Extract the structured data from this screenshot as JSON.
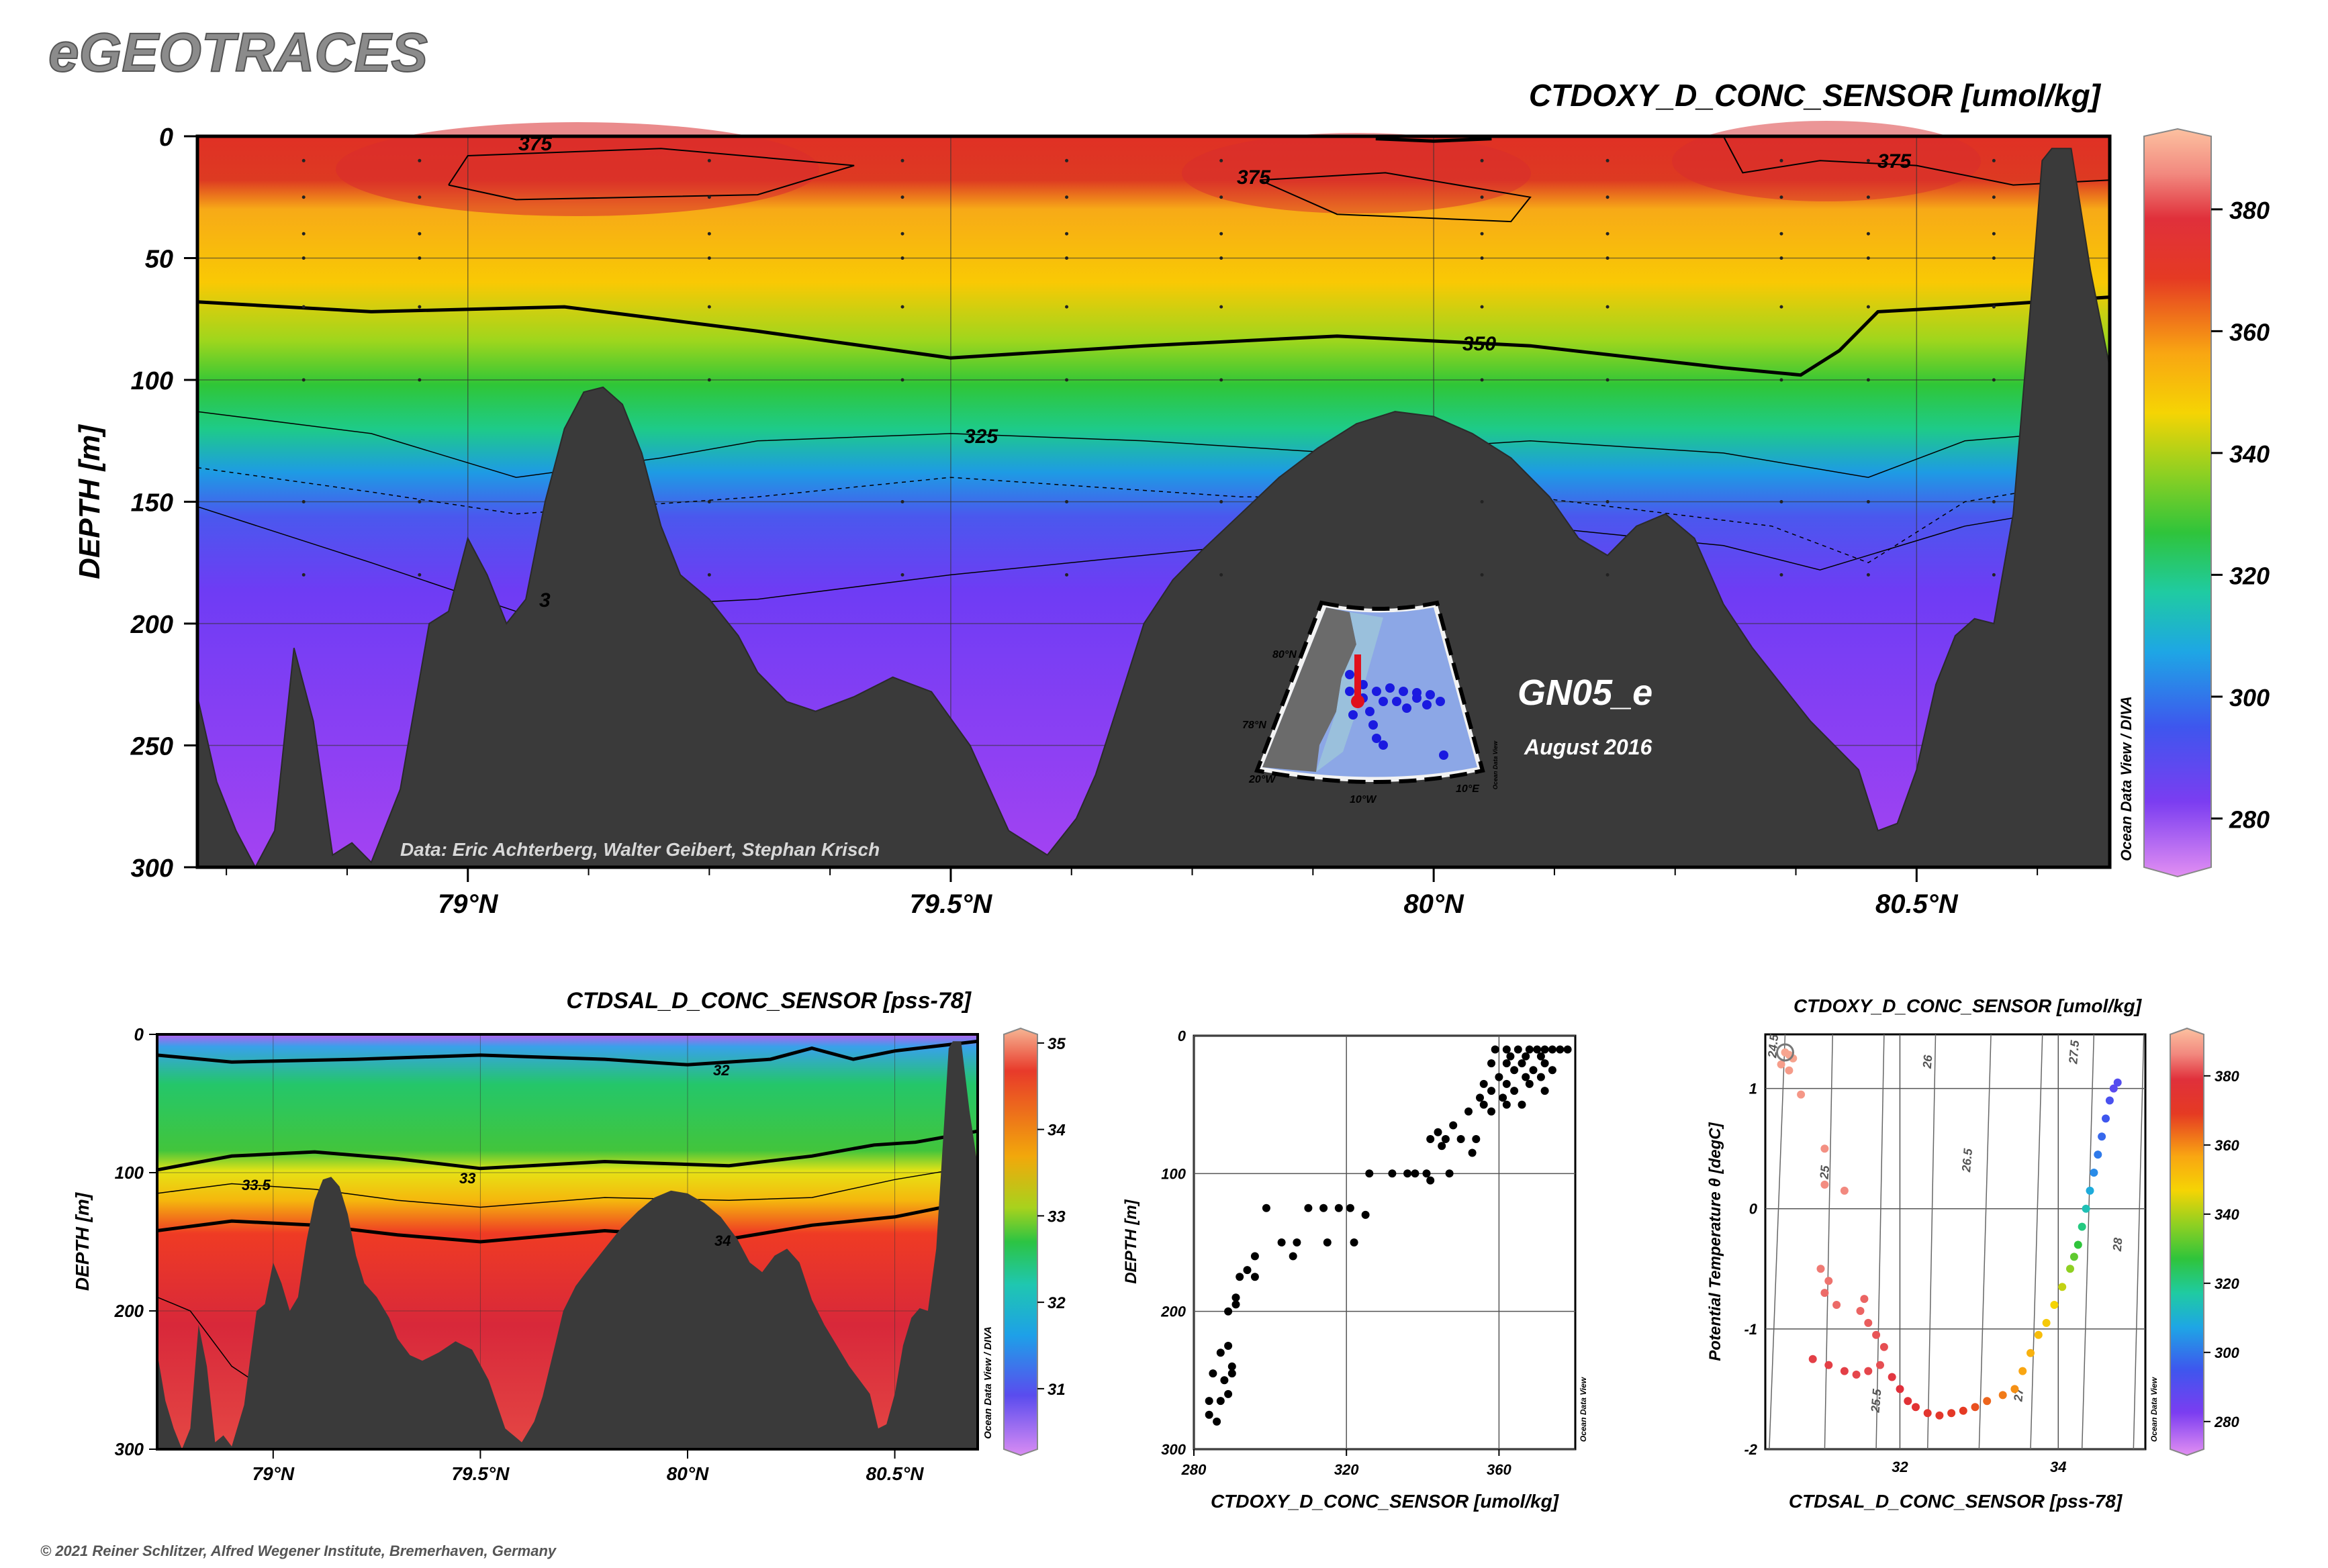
{
  "brand": "eGEOTRACES",
  "credit": "© 2021 Reiner Schlitzer, Alfred Wegener Institute, Bremerhaven, Germany",
  "main_section": {
    "title": "CTDOXY_D_CONC_SENSOR [umol/kg]",
    "ylabel": "DEPTH [m]",
    "cruise": "GN05_e",
    "date": "August 2016",
    "data_credit": "Data: Eric Achterberg, Walter Geibert, Stephan Krisch",
    "odv_label": "Ocean Data View / DIVA",
    "x_ticks": [
      "79°N",
      "79.5°N",
      "80°N",
      "80.5°N"
    ],
    "y_ticks": [
      "0",
      "50",
      "100",
      "150",
      "200",
      "250",
      "300"
    ],
    "colorbar_ticks": [
      "380",
      "360",
      "340",
      "320",
      "300",
      "280"
    ],
    "contour_labels": [
      "375",
      "375",
      "375",
      "350",
      "325",
      "3"
    ]
  },
  "map_inset": {
    "lat_labels": [
      "80°N",
      "78°N"
    ],
    "lon_labels": [
      "20°W",
      "10°W",
      "10°E"
    ],
    "odv_label": "Ocean Data View"
  },
  "sal_section": {
    "title": "CTDSAL_D_CONC_SENSOR [pss-78]",
    "ylabel": "DEPTH [m]",
    "odv_label": "Ocean Data View / DIVA",
    "x_ticks": [
      "79°N",
      "79.5°N",
      "80°N",
      "80.5°N"
    ],
    "y_ticks": [
      "0",
      "100",
      "200",
      "300"
    ],
    "colorbar_ticks": [
      "35",
      "34",
      "33",
      "32",
      "31"
    ],
    "contour_labels": [
      "32",
      "33",
      "33.5",
      "34"
    ]
  },
  "profile": {
    "xlabel": "CTDOXY_D_CONC_SENSOR [umol/kg]",
    "ylabel": "DEPTH [m]",
    "odv_label": "Ocean Data View",
    "x_ticks": [
      "280",
      "320",
      "360"
    ],
    "y_ticks": [
      "0",
      "100",
      "200",
      "300"
    ]
  },
  "ts_plot": {
    "title": "CTDOXY_D_CONC_SENSOR [umol/kg]",
    "xlabel": "CTDSAL_D_CONC_SENSOR [pss-78]",
    "ylabel": "Potential Temperature θ [degC]",
    "odv_label": "Ocean Data View",
    "x_ticks": [
      "32",
      "34"
    ],
    "y_ticks": [
      "1",
      "0",
      "-1",
      "-2"
    ],
    "sigma_labels": [
      "25",
      "25.5",
      "26",
      "26.5",
      "27",
      "27.5",
      "28",
      "24.5"
    ],
    "colorbar_ticks": [
      "380",
      "360",
      "340",
      "320",
      "300",
      "280"
    ]
  },
  "chart_data": [
    {
      "type": "heatmap",
      "title": "CTDOXY_D_CONC_SENSOR [umol/kg]",
      "xlabel": "",
      "ylabel": "DEPTH [m]",
      "xlim": [
        78.72,
        80.7
      ],
      "ylim": [
        300,
        0
      ],
      "colorbar_range": [
        272,
        392
      ],
      "x_ticks": [
        79,
        79.5,
        80,
        80.5
      ],
      "y_ticks": [
        0,
        50,
        100,
        150,
        200,
        250,
        300
      ],
      "contours": [
        {
          "label": "375",
          "value": 375
        },
        {
          "label": "350",
          "value": 350
        },
        {
          "label": "325",
          "value": 325
        }
      ],
      "bathymetry": {
        "lat": [
          78.72,
          78.74,
          78.76,
          78.78,
          78.8,
          78.82,
          78.84,
          78.86,
          78.88,
          78.9,
          78.93,
          78.96,
          78.98,
          79.0,
          79.02,
          79.04,
          79.06,
          79.08,
          79.1,
          79.12,
          79.14,
          79.16,
          79.18,
          79.2,
          79.22,
          79.25,
          79.28,
          79.3,
          79.33,
          79.36,
          79.4,
          79.44,
          79.48,
          79.52,
          79.56,
          79.6,
          79.63,
          79.65,
          79.68,
          79.7,
          79.73,
          79.76,
          79.8,
          79.84,
          79.88,
          79.92,
          79.96,
          80.0,
          80.04,
          80.08,
          80.12,
          80.15,
          80.18,
          80.21,
          80.24,
          80.27,
          80.3,
          80.33,
          80.36,
          80.39,
          80.42,
          80.44,
          80.46,
          80.48,
          80.5,
          80.52,
          80.54,
          80.56,
          80.58,
          80.6,
          80.62,
          80.63,
          80.64,
          80.66,
          80.68,
          80.7
        ],
        "depth": [
          230,
          265,
          285,
          300,
          285,
          210,
          240,
          295,
          290,
          298,
          268,
          200,
          195,
          165,
          180,
          200,
          190,
          150,
          120,
          105,
          103,
          110,
          130,
          160,
          180,
          190,
          205,
          220,
          232,
          236,
          230,
          222,
          228,
          250,
          285,
          295,
          280,
          262,
          225,
          200,
          182,
          170,
          155,
          140,
          128,
          118,
          113,
          115,
          122,
          132,
          148,
          165,
          172,
          160,
          155,
          165,
          192,
          210,
          225,
          240,
          252,
          260,
          285,
          282,
          260,
          225,
          205,
          198,
          200,
          155,
          60,
          10,
          5,
          5,
          55,
          95
        ]
      }
    },
    {
      "type": "heatmap",
      "title": "CTDSAL_D_CONC_SENSOR [pss-78]",
      "xlabel": "",
      "ylabel": "DEPTH [m]",
      "xlim": [
        78.72,
        80.7
      ],
      "ylim": [
        300,
        0
      ],
      "colorbar_range": [
        30.3,
        35.1
      ],
      "x_ticks": [
        79,
        79.5,
        80,
        80.5
      ],
      "y_ticks": [
        0,
        100,
        200,
        300
      ],
      "contours": [
        {
          "label": "32",
          "value": 32
        },
        {
          "label": "33",
          "value": 33
        },
        {
          "label": "33.5",
          "value": 33.5
        },
        {
          "label": "34",
          "value": 34
        }
      ]
    },
    {
      "type": "scatter",
      "xlabel": "CTDOXY_D_CONC_SENSOR [umol/kg]",
      "ylabel": "DEPTH [m]",
      "xlim": [
        280,
        380
      ],
      "ylim": [
        300,
        0
      ],
      "x_ticks": [
        280,
        320,
        360
      ],
      "y_ticks": [
        0,
        100,
        200,
        300
      ],
      "points": [
        [
          374,
          10
        ],
        [
          372,
          10
        ],
        [
          370,
          10
        ],
        [
          368,
          10
        ],
        [
          365,
          10
        ],
        [
          362,
          10
        ],
        [
          359,
          10
        ],
        [
          376,
          10
        ],
        [
          371,
          15
        ],
        [
          367,
          15
        ],
        [
          363,
          15
        ],
        [
          378,
          10
        ],
        [
          366,
          20
        ],
        [
          372,
          20
        ],
        [
          362,
          20
        ],
        [
          358,
          20
        ],
        [
          374,
          25
        ],
        [
          369,
          25
        ],
        [
          364,
          25
        ],
        [
          360,
          30
        ],
        [
          367,
          30
        ],
        [
          371,
          30
        ],
        [
          356,
          35
        ],
        [
          362,
          35
        ],
        [
          368,
          35
        ],
        [
          358,
          40
        ],
        [
          364,
          40
        ],
        [
          372,
          40
        ],
        [
          355,
          45
        ],
        [
          361,
          45
        ],
        [
          366,
          50
        ],
        [
          356,
          50
        ],
        [
          362,
          50
        ],
        [
          352,
          55
        ],
        [
          358,
          55
        ],
        [
          350,
          75
        ],
        [
          346,
          75
        ],
        [
          342,
          75
        ],
        [
          354,
          75
        ],
        [
          348,
          65
        ],
        [
          344,
          70
        ],
        [
          353,
          85
        ],
        [
          345,
          80
        ],
        [
          341,
          100
        ],
        [
          336,
          100
        ],
        [
          332,
          100
        ],
        [
          338,
          100
        ],
        [
          342,
          105
        ],
        [
          347,
          100
        ],
        [
          326,
          100
        ],
        [
          321,
          125
        ],
        [
          318,
          125
        ],
        [
          314,
          125
        ],
        [
          310,
          125
        ],
        [
          325,
          130
        ],
        [
          322,
          150
        ],
        [
          315,
          150
        ],
        [
          307,
          150
        ],
        [
          303,
          150
        ],
        [
          299,
          125
        ],
        [
          306,
          160
        ],
        [
          296,
          160
        ],
        [
          294,
          170
        ],
        [
          292,
          175
        ],
        [
          296,
          175
        ],
        [
          291,
          195
        ],
        [
          289,
          200
        ],
        [
          291,
          190
        ],
        [
          289,
          225
        ],
        [
          287,
          230
        ],
        [
          290,
          245
        ],
        [
          288,
          250
        ],
        [
          285,
          245
        ],
        [
          289,
          260
        ],
        [
          287,
          265
        ],
        [
          284,
          275
        ],
        [
          286,
          280
        ],
        [
          284,
          265
        ],
        [
          290,
          240
        ]
      ]
    },
    {
      "type": "scatter",
      "title": "CTDOXY_D_CONC_SENSOR [umol/kg]",
      "xlabel": "CTDSAL_D_CONC_SENSOR [pss-78]",
      "ylabel": "Potential Temperature θ [degC]",
      "xlim": [
        30.3,
        35.1
      ],
      "ylim": [
        -2,
        1.45
      ],
      "x_ticks": [
        32,
        34
      ],
      "y_ticks": [
        1,
        0,
        -1,
        -2
      ],
      "color_range": [
        272,
        392
      ],
      "points": [
        [
          30.55,
          1.3,
          384
        ],
        [
          30.6,
          1.28,
          384
        ],
        [
          30.65,
          1.25,
          383
        ],
        [
          30.5,
          1.2,
          382
        ],
        [
          30.6,
          1.15,
          381
        ],
        [
          30.75,
          0.95,
          380
        ],
        [
          31.05,
          0.5,
          378
        ],
        [
          31.05,
          0.2,
          377
        ],
        [
          31.3,
          0.15,
          376
        ],
        [
          31.0,
          -0.5,
          374
        ],
        [
          31.1,
          -0.6,
          373
        ],
        [
          31.05,
          -0.7,
          372
        ],
        [
          31.2,
          -0.8,
          372
        ],
        [
          31.55,
          -0.75,
          371
        ],
        [
          31.5,
          -0.85,
          371
        ],
        [
          31.6,
          -0.95,
          370
        ],
        [
          31.7,
          -1.05,
          369
        ],
        [
          31.8,
          -1.15,
          368
        ],
        [
          31.75,
          -1.3,
          368
        ],
        [
          31.6,
          -1.35,
          367
        ],
        [
          31.45,
          -1.38,
          367
        ],
        [
          31.3,
          -1.35,
          366
        ],
        [
          31.1,
          -1.3,
          366
        ],
        [
          30.9,
          -1.25,
          366
        ],
        [
          31.9,
          -1.4,
          365
        ],
        [
          32.0,
          -1.5,
          364
        ],
        [
          32.1,
          -1.6,
          362
        ],
        [
          32.2,
          -1.65,
          360
        ],
        [
          32.35,
          -1.7,
          358
        ],
        [
          32.5,
          -1.72,
          356
        ],
        [
          32.65,
          -1.7,
          354
        ],
        [
          32.8,
          -1.68,
          352
        ],
        [
          32.95,
          -1.65,
          350
        ],
        [
          33.1,
          -1.6,
          348
        ],
        [
          33.3,
          -1.55,
          346
        ],
        [
          33.45,
          -1.5,
          344
        ],
        [
          33.55,
          -1.35,
          342
        ],
        [
          33.65,
          -1.2,
          340
        ],
        [
          33.75,
          -1.05,
          338
        ],
        [
          33.85,
          -0.95,
          336
        ],
        [
          33.95,
          -0.8,
          334
        ],
        [
          34.05,
          -0.65,
          330
        ],
        [
          34.15,
          -0.5,
          326
        ],
        [
          34.2,
          -0.4,
          322
        ],
        [
          34.25,
          -0.3,
          318
        ],
        [
          34.3,
          -0.15,
          314
        ],
        [
          34.35,
          0.0,
          310
        ],
        [
          34.4,
          0.15,
          306
        ],
        [
          34.45,
          0.3,
          302
        ],
        [
          34.5,
          0.45,
          300
        ],
        [
          34.55,
          0.6,
          298
        ],
        [
          34.6,
          0.75,
          296
        ],
        [
          34.65,
          0.9,
          294
        ],
        [
          34.75,
          1.05,
          292
        ],
        [
          34.7,
          1.0,
          291
        ]
      ]
    }
  ]
}
